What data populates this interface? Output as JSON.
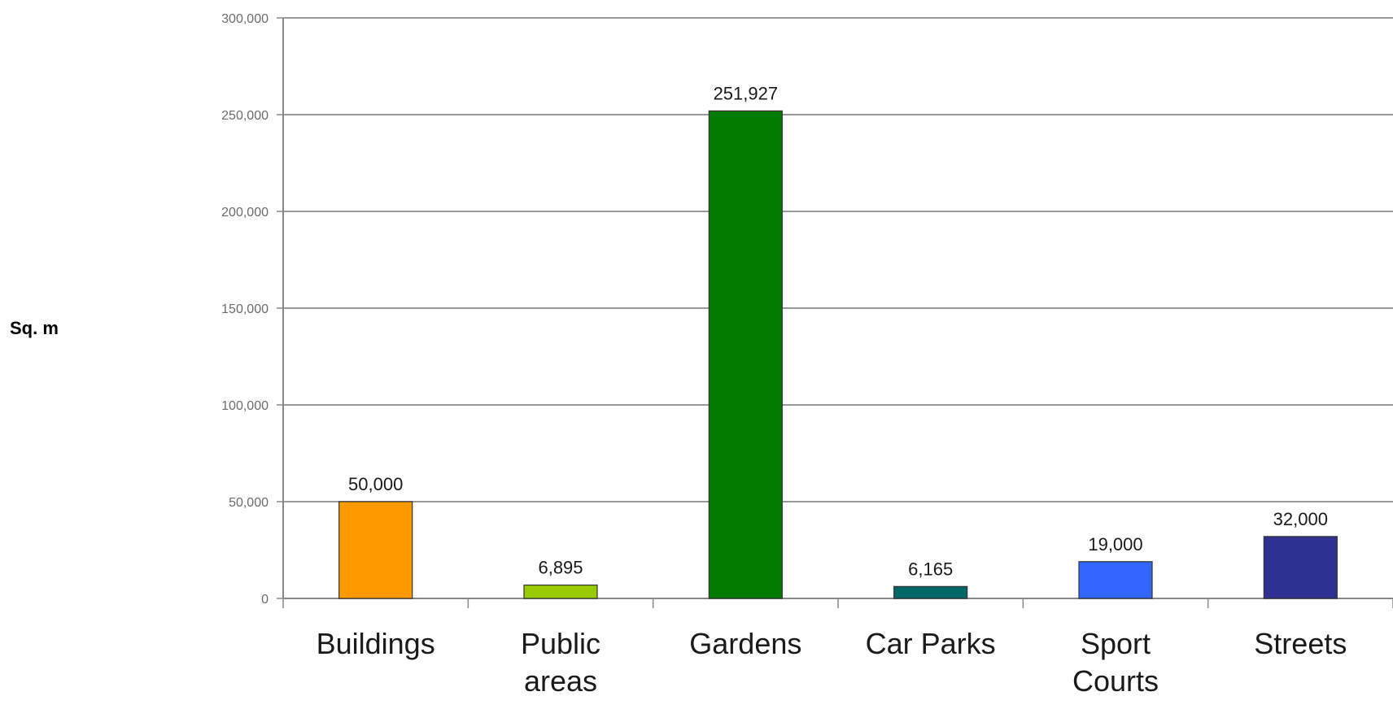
{
  "chart_data": {
    "type": "bar",
    "ylabel": "Sq. m",
    "xlabel": "",
    "title": "",
    "ylim": [
      0,
      300000
    ],
    "yticks": [
      0,
      50000,
      100000,
      150000,
      200000,
      250000,
      300000
    ],
    "ytick_labels": [
      "0",
      "50,000",
      "100,000",
      "150,000",
      "200,000",
      "250,000",
      "300,000"
    ],
    "grid": true,
    "categories": [
      [
        "Buildings"
      ],
      [
        "Public",
        "areas"
      ],
      [
        "Gardens"
      ],
      [
        "Car Parks"
      ],
      [
        "Sport",
        "Courts"
      ],
      [
        "Streets"
      ]
    ],
    "values": [
      50000,
      6895,
      251927,
      6165,
      19000,
      32000
    ],
    "data_labels": [
      "50,000",
      "6,895",
      "251,927",
      "6,165",
      "19,000",
      "32,000"
    ],
    "colors": [
      "#ff9900",
      "#99cc00",
      "#007a00",
      "#006666",
      "#3366ff",
      "#2e3192"
    ]
  }
}
